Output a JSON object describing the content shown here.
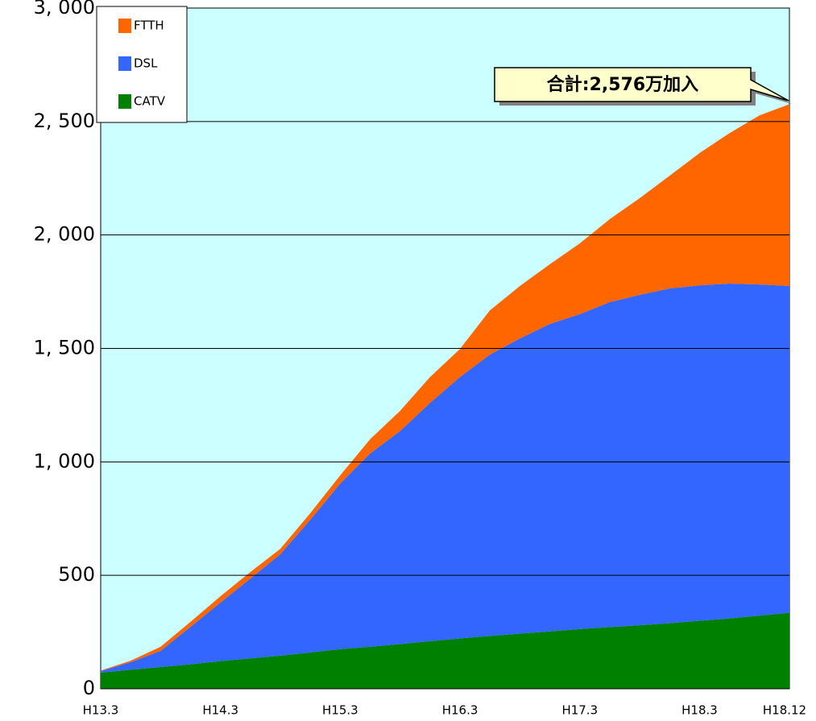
{
  "chart_data": {
    "type": "stacked-area",
    "annotation": "合計:2,576万加入",
    "categories": [
      "H13.3",
      null,
      null,
      null,
      "H14.3",
      null,
      null,
      null,
      "H15.3",
      null,
      null,
      null,
      "H16.3",
      null,
      null,
      null,
      "H17.3",
      null,
      null,
      null,
      "H18.3",
      null,
      null,
      "H18.12"
    ],
    "series": [
      {
        "name": "FTTH",
        "color": "#ff6600",
        "values": [
          2,
          7,
          18,
          22,
          28,
          29,
          24,
          29,
          36,
          63,
          89,
          114,
          124,
          195,
          231,
          263,
          312,
          366,
          426,
          497,
          583,
          663,
          745,
          801
        ]
      },
      {
        "name": "DSL",
        "color": "#3366ff",
        "values": [
          7,
          33,
          71,
          165,
          258,
          352,
          447,
          585,
          730,
          852,
          939,
          1050,
          1152,
          1240,
          1301,
          1355,
          1388,
          1432,
          1456,
          1475,
          1478,
          1476,
          1460,
          1440
        ]
      },
      {
        "name": "CATV",
        "color": "#008000",
        "values": [
          71,
          84,
          96,
          108,
          122,
          134,
          146,
          160,
          175,
          185,
          197,
          210,
          222,
          233,
          243,
          253,
          263,
          272,
          280,
          289,
          300,
          310,
          322,
          335
        ]
      }
    ],
    "ylim": [
      0,
      3000
    ],
    "yticks": [
      0,
      500,
      {
        "value": 1000,
        "label": "1, 000"
      },
      {
        "value": 1500,
        "label": "1, 500"
      },
      {
        "value": 2000,
        "label": "2, 000"
      },
      {
        "value": 2500,
        "label": "2, 500"
      },
      {
        "value": 3000,
        "label": "3, 000"
      }
    ],
    "grid": true,
    "legend": "upper left",
    "background": "#ccffff"
  }
}
